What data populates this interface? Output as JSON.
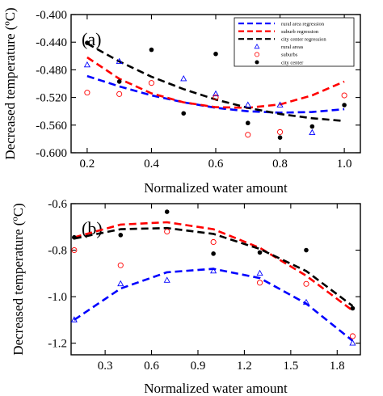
{
  "chart_data": [
    {
      "type": "scatter",
      "panel_label": "(a)",
      "xlabel": "Normalized water amount",
      "ylabel": "Decreased temperature (ºC)",
      "xlim": [
        0.15,
        1.05
      ],
      "ylim": [
        -0.6,
        -0.4
      ],
      "xticks": [
        0.2,
        0.4,
        0.6,
        0.8,
        1.0
      ],
      "xticklabels": [
        "0.2",
        "0.4",
        "0.6",
        "0.8",
        "1.0"
      ],
      "yticks": [
        -0.4,
        -0.44,
        -0.48,
        -0.52,
        -0.56,
        -0.6
      ],
      "yticklabels": [
        "-0.400",
        "-0.440",
        "-0.480",
        "-0.520",
        "-0.560",
        "-0.600"
      ],
      "legend": {
        "position": "top-right",
        "entries": [
          {
            "label": "rural area regression",
            "kind": "line",
            "color": "#0000ff"
          },
          {
            "label": "suburb regression",
            "kind": "line",
            "color": "#ff0000"
          },
          {
            "label": "city center regression",
            "kind": "line",
            "color": "#000000"
          },
          {
            "label": "rural areas",
            "kind": "triangle",
            "color": "#0000ff"
          },
          {
            "label": "suburbs",
            "kind": "circle-open",
            "color": "#ff0000"
          },
          {
            "label": "city center",
            "kind": "circle-filled",
            "color": "#000000"
          }
        ]
      },
      "series": [
        {
          "name": "rural area regression",
          "kind": "line",
          "color": "#0000ff",
          "x": [
            0.2,
            0.3,
            0.4,
            0.5,
            0.6,
            0.7,
            0.8,
            0.9,
            1.0
          ],
          "y": [
            -0.489,
            -0.504,
            -0.517,
            -0.527,
            -0.535,
            -0.54,
            -0.542,
            -0.541,
            -0.537
          ]
        },
        {
          "name": "suburb regression",
          "kind": "line",
          "color": "#ff0000",
          "x": [
            0.2,
            0.3,
            0.4,
            0.5,
            0.6,
            0.7,
            0.8,
            0.9,
            1.0
          ],
          "y": [
            -0.462,
            -0.493,
            -0.514,
            -0.527,
            -0.534,
            -0.535,
            -0.53,
            -0.517,
            -0.497
          ]
        },
        {
          "name": "city center regression",
          "kind": "line",
          "color": "#000000",
          "x": [
            0.2,
            0.3,
            0.4,
            0.5,
            0.6,
            0.7,
            0.8,
            0.9,
            1.0
          ],
          "y": [
            -0.442,
            -0.468,
            -0.49,
            -0.508,
            -0.523,
            -0.535,
            -0.544,
            -0.55,
            -0.554
          ]
        },
        {
          "name": "rural areas",
          "kind": "triangle",
          "color": "#0000ff",
          "x": [
            0.2,
            0.3,
            0.5,
            0.6,
            0.7,
            0.8,
            0.9
          ],
          "y": [
            -0.473,
            -0.468,
            -0.493,
            -0.515,
            -0.531,
            -0.531,
            -0.571
          ]
        },
        {
          "name": "suburbs",
          "kind": "circle-open",
          "color": "#ff0000",
          "x": [
            0.2,
            0.3,
            0.4,
            0.6,
            0.7,
            0.8,
            1.0
          ],
          "y": [
            -0.513,
            -0.515,
            -0.499,
            -0.52,
            -0.574,
            -0.57,
            -0.517
          ]
        },
        {
          "name": "city center",
          "kind": "circle-filled",
          "color": "#000000",
          "x": [
            0.2,
            0.3,
            0.4,
            0.5,
            0.6,
            0.7,
            0.8,
            0.9,
            1.0
          ],
          "y": [
            -0.441,
            -0.497,
            -0.451,
            -0.543,
            -0.457,
            -0.557,
            -0.578,
            -0.562,
            -0.531
          ]
        }
      ]
    },
    {
      "type": "scatter",
      "panel_label": "(b)",
      "xlabel": "Normalized water amount",
      "ylabel": "Decreased temperature (ºC)",
      "xlim": [
        0.08,
        1.95
      ],
      "ylim": [
        -1.25,
        -0.6
      ],
      "xticks": [
        0.3,
        0.6,
        0.9,
        1.2,
        1.5,
        1.8
      ],
      "xticklabels": [
        "0.3",
        "0.6",
        "0.9",
        "1.2",
        "1.5",
        "1.8"
      ],
      "yticks": [
        -0.6,
        -0.8,
        -1.0,
        -1.2
      ],
      "yticklabels": [
        "-0.6",
        "-0.8",
        "-1.0",
        "-1.2"
      ],
      "series": [
        {
          "name": "rural area regression",
          "kind": "line",
          "color": "#0000ff",
          "x": [
            0.1,
            0.4,
            0.7,
            1.0,
            1.3,
            1.6,
            1.9
          ],
          "y": [
            -1.1,
            -0.965,
            -0.895,
            -0.88,
            -0.92,
            -1.03,
            -1.19
          ]
        },
        {
          "name": "suburb regression",
          "kind": "line",
          "color": "#ff0000",
          "x": [
            0.1,
            0.4,
            0.7,
            1.0,
            1.3,
            1.6,
            1.9
          ],
          "y": [
            -0.745,
            -0.69,
            -0.68,
            -0.71,
            -0.79,
            -0.91,
            -1.06
          ]
        },
        {
          "name": "city center regression",
          "kind": "line",
          "color": "#000000",
          "x": [
            0.1,
            0.4,
            0.7,
            1.0,
            1.3,
            1.6,
            1.9
          ],
          "y": [
            -0.75,
            -0.71,
            -0.705,
            -0.73,
            -0.795,
            -0.89,
            -1.04
          ]
        },
        {
          "name": "rural areas",
          "kind": "triangle",
          "color": "#0000ff",
          "x": [
            0.1,
            0.4,
            0.7,
            1.0,
            1.3,
            1.6,
            1.9
          ],
          "y": [
            -1.1,
            -0.945,
            -0.93,
            -0.89,
            -0.9,
            -1.025,
            -1.2
          ]
        },
        {
          "name": "suburbs",
          "kind": "circle-open",
          "color": "#ff0000",
          "x": [
            0.1,
            0.4,
            0.7,
            1.0,
            1.3,
            1.6,
            1.9
          ],
          "y": [
            -0.8,
            -0.865,
            -0.72,
            -0.765,
            -0.94,
            -0.945,
            -1.17
          ]
        },
        {
          "name": "city center",
          "kind": "circle-filled",
          "color": "#000000",
          "x": [
            0.1,
            0.4,
            0.7,
            1.0,
            1.3,
            1.6,
            1.9
          ],
          "y": [
            -0.745,
            -0.735,
            -0.635,
            -0.815,
            -0.81,
            -0.8,
            -1.05
          ]
        }
      ]
    }
  ]
}
